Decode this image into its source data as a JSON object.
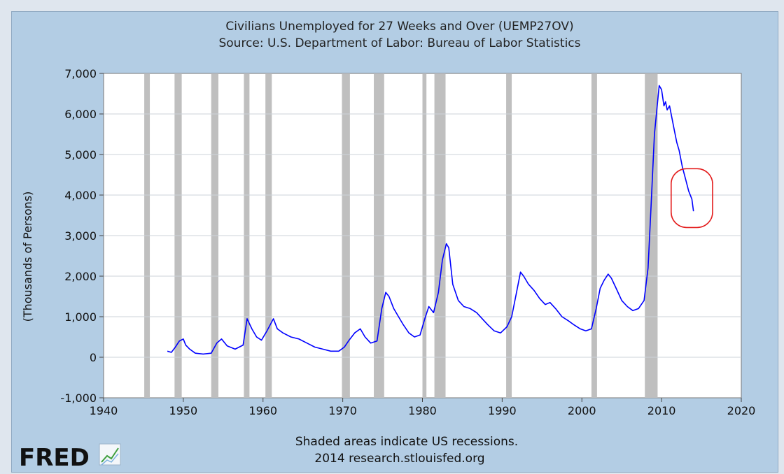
{
  "chart_data": {
    "type": "line",
    "title": "Civilians Unemployed for 27 Weeks and Over (UEMP27OV)",
    "subtitle": "Source: U.S. Department of Labor: Bureau of Labor Statistics",
    "xlabel": "",
    "ylabel": "(Thousands of Persons)",
    "xlim": [
      1940,
      2020
    ],
    "ylim": [
      -1000,
      7000
    ],
    "x_ticks": [
      1940,
      1950,
      1960,
      1970,
      1980,
      1990,
      2000,
      2010,
      2020
    ],
    "x_tick_labels": [
      "1940",
      "1950",
      "1960",
      "1970",
      "1980",
      "1990",
      "2000",
      "2010",
      "2020"
    ],
    "y_ticks": [
      -1000,
      0,
      1000,
      2000,
      3000,
      4000,
      5000,
      6000,
      7000
    ],
    "y_tick_labels": [
      "-1,000",
      "0",
      "1,000",
      "2,000",
      "3,000",
      "4,000",
      "5,000",
      "6,000",
      "7,000"
    ],
    "grid": true,
    "recessions": [
      [
        1945.1,
        1945.8
      ],
      [
        1948.9,
        1949.8
      ],
      [
        1953.5,
        1954.4
      ],
      [
        1957.6,
        1958.3
      ],
      [
        1960.3,
        1961.1
      ],
      [
        1969.9,
        1970.9
      ],
      [
        1973.9,
        1975.2
      ],
      [
        1980.0,
        1980.5
      ],
      [
        1981.5,
        1982.9
      ],
      [
        1990.5,
        1991.2
      ],
      [
        2001.2,
        2001.9
      ],
      [
        2007.9,
        2009.5
      ]
    ],
    "series": [
      {
        "name": "UEMP27OV",
        "color": "#0000ff",
        "x": [
          1948.0,
          1948.5,
          1949.0,
          1949.5,
          1950.0,
          1950.3,
          1950.8,
          1951.5,
          1952.5,
          1953.5,
          1954.2,
          1954.8,
          1955.5,
          1956.5,
          1957.5,
          1958.0,
          1958.6,
          1959.2,
          1959.8,
          1960.5,
          1961.3,
          1961.8,
          1962.5,
          1963.5,
          1964.5,
          1965.5,
          1966.5,
          1967.5,
          1968.5,
          1969.5,
          1970.2,
          1970.8,
          1971.5,
          1972.2,
          1972.8,
          1973.5,
          1974.3,
          1974.9,
          1975.4,
          1975.8,
          1976.4,
          1977.0,
          1977.6,
          1978.3,
          1979.0,
          1979.7,
          1980.3,
          1980.8,
          1981.4,
          1982.0,
          1982.5,
          1983.0,
          1983.3,
          1983.8,
          1984.5,
          1985.2,
          1986.0,
          1986.8,
          1987.5,
          1988.2,
          1989.0,
          1989.8,
          1990.6,
          1991.2,
          1991.8,
          1992.3,
          1992.7,
          1993.3,
          1994.0,
          1994.7,
          1995.4,
          1996.0,
          1996.7,
          1997.5,
          1998.3,
          1999.0,
          1999.8,
          2000.5,
          2001.2,
          2001.8,
          2002.3,
          2002.8,
          2003.3,
          2003.7,
          2004.3,
          2005.0,
          2005.7,
          2006.4,
          2007.1,
          2007.8,
          2008.3,
          2008.7,
          2009.1,
          2009.4,
          2009.7,
          2010.0,
          2010.3,
          2010.5,
          2010.7,
          2011.0,
          2011.3,
          2011.6,
          2011.9,
          2012.2,
          2012.6,
          2013.0,
          2013.4,
          2013.8,
          2014.0
        ],
        "values": [
          150,
          120,
          250,
          400,
          450,
          300,
          200,
          100,
          80,
          100,
          350,
          450,
          280,
          200,
          300,
          950,
          700,
          500,
          420,
          650,
          950,
          700,
          600,
          500,
          450,
          350,
          250,
          200,
          150,
          150,
          250,
          420,
          600,
          700,
          500,
          350,
          400,
          1200,
          1600,
          1500,
          1200,
          1000,
          800,
          600,
          500,
          550,
          950,
          1250,
          1100,
          1600,
          2400,
          2800,
          2700,
          1800,
          1400,
          1250,
          1200,
          1100,
          950,
          800,
          650,
          600,
          750,
          1000,
          1600,
          2100,
          2000,
          1800,
          1650,
          1450,
          1300,
          1350,
          1200,
          1000,
          900,
          800,
          700,
          650,
          700,
          1200,
          1700,
          1900,
          2050,
          1950,
          1700,
          1400,
          1250,
          1150,
          1200,
          1400,
          2200,
          3800,
          5500,
          6100,
          6700,
          6600,
          6200,
          6300,
          6100,
          6200,
          5900,
          5600,
          5300,
          5100,
          4700,
          4400,
          4100,
          3900,
          3600
        ]
      }
    ],
    "annotations": [
      {
        "type": "ellipse",
        "shape": "rounded-rect",
        "color": "#e31b1b",
        "center": [
          2013.8,
          4000
        ],
        "x_span": [
          2011.2,
          2016.4
        ],
        "y_span": [
          3200,
          4650
        ]
      }
    ]
  },
  "footer": {
    "line1": "Shaded areas indicate US recessions.",
    "line2": "2014 research.stlouisfed.org"
  },
  "logo": {
    "text": "FRED"
  }
}
